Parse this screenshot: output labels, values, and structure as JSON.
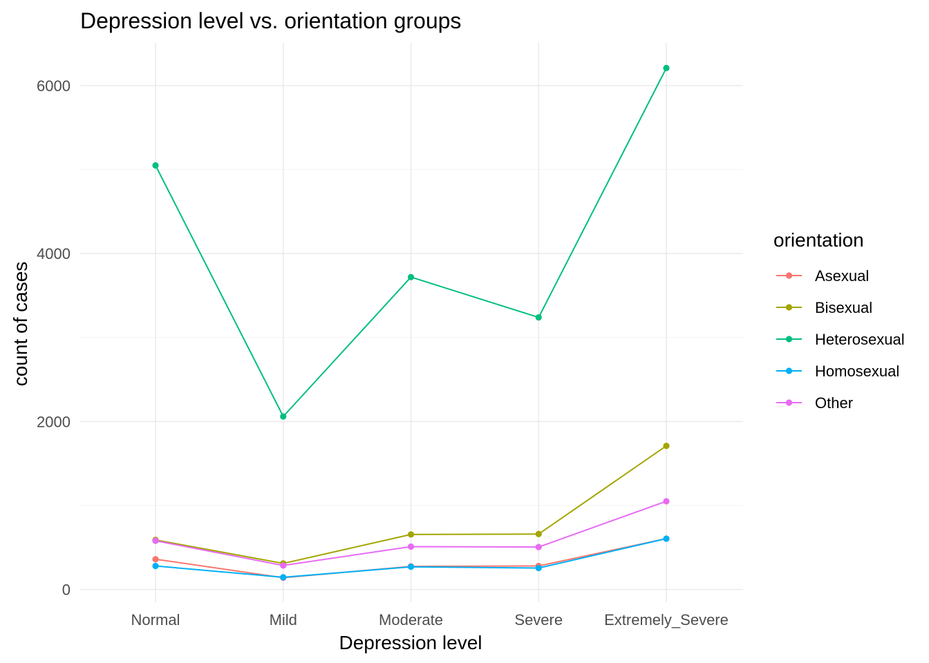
{
  "chart_data": {
    "type": "line",
    "title": "Depression level vs. orientation groups",
    "xlabel": "Depression level",
    "ylabel": "count of cases",
    "categories": [
      "Normal",
      "Mild",
      "Moderate",
      "Severe",
      "Extremely_Severe"
    ],
    "ylim": [
      0,
      6500
    ],
    "yticks": [
      0,
      2000,
      4000,
      6000
    ],
    "grid": true,
    "legend": {
      "title": "orientation",
      "position": "right"
    },
    "series": [
      {
        "name": "Asexual",
        "color": "#F8766D",
        "values": [
          360,
          140,
          275,
          280,
          605
        ]
      },
      {
        "name": "Bisexual",
        "color": "#A3A500",
        "values": [
          590,
          310,
          655,
          660,
          1710
        ]
      },
      {
        "name": "Heterosexual",
        "color": "#00BF7D",
        "values": [
          5050,
          2060,
          3720,
          3240,
          6210
        ]
      },
      {
        "name": "Homosexual",
        "color": "#00B0F6",
        "values": [
          280,
          145,
          270,
          255,
          605
        ]
      },
      {
        "name": "Other",
        "color": "#E76BF3",
        "values": [
          580,
          285,
          510,
          505,
          1050
        ]
      }
    ]
  }
}
